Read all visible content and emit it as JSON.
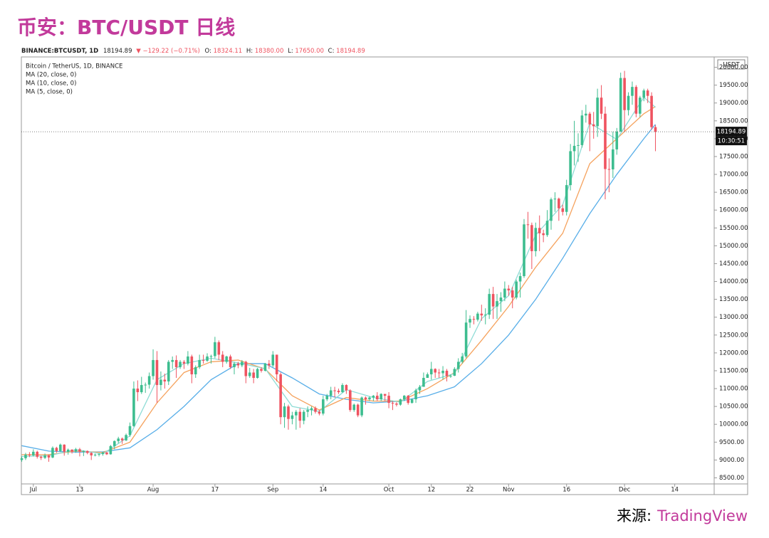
{
  "chart_data": {
    "type": "candlestick",
    "title": "币安：BTC/USDT 日线",
    "header": {
      "symbol": "BINANCE:BTCUSDT, 1D",
      "last": "18194.89",
      "change": "▼ −129.22 (−0.71%)",
      "ohlc": [
        {
          "label": "O:",
          "value": "18324.11"
        },
        {
          "label": "H:",
          "value": "18380.00"
        },
        {
          "label": "L:",
          "value": "17650.00"
        },
        {
          "label": "C:",
          "value": "18194.89"
        }
      ]
    },
    "legend_title": "Bitcoin / TetherUS, 1D, BINANCE",
    "unit": "USDT",
    "countdown": "10:30:51",
    "up_color": "#3dbd8f",
    "down_color": "#ef5360",
    "grid": false,
    "xlim": [
      -3.1,
      176.2
    ],
    "ylim": [
      8330,
      20290
    ],
    "xticks": [
      {
        "value": 0,
        "label": "Jul"
      },
      {
        "value": 12,
        "label": "13"
      },
      {
        "value": 31,
        "label": "Aug"
      },
      {
        "value": 47,
        "label": "17"
      },
      {
        "value": 62,
        "label": "Sep"
      },
      {
        "value": 75,
        "label": "14"
      },
      {
        "value": 92,
        "label": "Oct"
      },
      {
        "value": 103,
        "label": "12"
      },
      {
        "value": 113,
        "label": "22"
      },
      {
        "value": 123,
        "label": "Nov"
      },
      {
        "value": 138,
        "label": "16"
      },
      {
        "value": 153,
        "label": "Dec"
      },
      {
        "value": 166,
        "label": "14"
      }
    ],
    "yticks": [
      {
        "value": 8500,
        "label": "8500.00"
      },
      {
        "value": 9000,
        "label": "9000.00"
      },
      {
        "value": 9500,
        "label": "9500.00"
      },
      {
        "value": 10000,
        "label": "10000.00"
      },
      {
        "value": 10500,
        "label": "10500.00"
      },
      {
        "value": 11000,
        "label": "11000.00"
      },
      {
        "value": 11500,
        "label": "11500.00"
      },
      {
        "value": 12000,
        "label": "12000.00"
      },
      {
        "value": 12500,
        "label": "12500.00"
      },
      {
        "value": 13000,
        "label": "13000.00"
      },
      {
        "value": 13500,
        "label": "13500.00"
      },
      {
        "value": 14000,
        "label": "14000.00"
      },
      {
        "value": 14500,
        "label": "14500.00"
      },
      {
        "value": 15000,
        "label": "15000.00"
      },
      {
        "value": 15500,
        "label": "15500.00"
      },
      {
        "value": 16000,
        "label": "16000.00"
      },
      {
        "value": 16500,
        "label": "16500.00"
      },
      {
        "value": 17000,
        "label": "17000.00"
      },
      {
        "value": 17500,
        "label": "17500.00"
      },
      {
        "value": 18000,
        "label": "18000.00"
      },
      {
        "value": 18500,
        "label": "18500.00"
      },
      {
        "value": 19000,
        "label": "19000.00"
      },
      {
        "value": 19500,
        "label": "19500.00"
      },
      {
        "value": 20000,
        "label": "20000.00"
      }
    ],
    "x": [
      -3,
      -2,
      -1,
      0,
      1,
      2,
      3,
      4,
      5,
      6,
      7,
      8,
      9,
      10,
      11,
      12,
      13,
      14,
      15,
      16,
      17,
      18,
      19,
      20,
      21,
      22,
      23,
      24,
      25,
      26,
      27,
      28,
      29,
      30,
      31,
      32,
      33,
      34,
      35,
      36,
      37,
      38,
      39,
      40,
      41,
      42,
      43,
      44,
      45,
      46,
      47,
      48,
      49,
      50,
      51,
      52,
      53,
      54,
      55,
      56,
      57,
      58,
      59,
      60,
      61,
      62,
      63,
      64,
      65,
      66,
      67,
      68,
      69,
      70,
      71,
      72,
      73,
      74,
      75,
      76,
      77,
      78,
      79,
      80,
      81,
      82,
      83,
      84,
      85,
      86,
      87,
      88,
      89,
      90,
      91,
      92,
      93,
      94,
      95,
      96,
      97,
      98,
      99,
      100,
      101,
      102,
      103,
      104,
      105,
      106,
      107,
      108,
      109,
      110,
      111,
      112,
      113,
      114,
      115,
      116,
      117,
      118,
      119,
      120,
      121,
      122,
      123,
      124,
      125,
      126,
      127,
      128,
      129,
      130,
      131,
      132,
      133,
      134,
      135,
      136,
      137,
      138,
      139,
      140,
      141,
      142,
      143,
      144,
      145,
      146,
      147,
      148,
      149,
      150,
      151,
      152,
      153,
      154,
      155,
      156,
      157,
      158,
      159,
      160,
      161
    ],
    "open": [
      9000,
      9050,
      9150,
      9130,
      9230,
      9090,
      9060,
      9130,
      9070,
      9340,
      9250,
      9430,
      9230,
      9290,
      9240,
      9300,
      9240,
      9250,
      9200,
      9130,
      9150,
      9170,
      9210,
      9160,
      9390,
      9530,
      9600,
      9550,
      9700,
      9950,
      11000,
      10900,
      11100,
      11110,
      11350,
      11800,
      11100,
      11250,
      11200,
      11750,
      11800,
      11600,
      11750,
      11700,
      11900,
      11400,
      11600,
      11800,
      11780,
      11900,
      11910,
      12300,
      11950,
      11750,
      11900,
      11600,
      11700,
      11650,
      11750,
      11350,
      11450,
      11300,
      11550,
      11500,
      11700,
      11650,
      11950,
      11400,
      10200,
      10500,
      10150,
      10250,
      10350,
      10100,
      10350,
      10400,
      10450,
      10350,
      10300,
      10700,
      10800,
      10950,
      10940,
      10900,
      11100,
      10950,
      10400,
      10550,
      10250,
      10750,
      10700,
      10750,
      10800,
      10700,
      10850,
      10800,
      10600,
      10580,
      10550,
      10700,
      10800,
      10600,
      10700,
      10950,
      11050,
      11300,
      11400,
      11550,
      11450,
      11430,
      11500,
      11350,
      11360,
      11550,
      11750,
      11900,
      12850,
      12950,
      12930,
      13100,
      13050,
      13070,
      13650,
      13300,
      13450,
      13550,
      13800,
      13750,
      13550,
      14000,
      14150,
      15600,
      15580,
      14850,
      15500,
      15350,
      15300,
      15700,
      16300,
      16320,
      16050,
      15950,
      16700,
      17650,
      17800,
      17820,
      18650,
      18700,
      18400,
      18350,
      19150,
      18700,
      17150,
      17140,
      17700,
      18200,
      19700,
      18800,
      19200,
      19450,
      18700,
      19150,
      19350,
      19200,
      18324.11
    ],
    "high": [
      9100,
      9200,
      9220,
      9300,
      9260,
      9120,
      9180,
      9150,
      9380,
      9370,
      9460,
      9440,
      9320,
      9300,
      9340,
      9340,
      9270,
      9270,
      9220,
      9180,
      9190,
      9230,
      9230,
      9420,
      9550,
      9650,
      9630,
      9740,
      10050,
      11200,
      11230,
      11330,
      11170,
      11450,
      12100,
      12050,
      11480,
      11420,
      11800,
      11900,
      11930,
      11800,
      11800,
      12050,
      11950,
      11650,
      11950,
      11950,
      11990,
      11950,
      12450,
      12350,
      12050,
      11920,
      11950,
      11750,
      11750,
      11800,
      11780,
      11580,
      11550,
      11580,
      11600,
      11720,
      11800,
      12050,
      11950,
      11450,
      10600,
      10550,
      10350,
      10400,
      10450,
      10400,
      10500,
      10500,
      10500,
      10400,
      10800,
      10850,
      11050,
      11050,
      11000,
      11150,
      11120,
      10980,
      10580,
      10580,
      10780,
      10780,
      10780,
      10820,
      10900,
      10870,
      10850,
      10900,
      10650,
      10620,
      10720,
      10820,
      10820,
      10720,
      11000,
      11100,
      11450,
      11450,
      11750,
      11570,
      11550,
      11630,
      11550,
      11400,
      11600,
      11850,
      12000,
      13200,
      13050,
      13030,
      13150,
      13350,
      13250,
      13800,
      13850,
      13650,
      13700,
      14000,
      13900,
      13850,
      14050,
      14250,
      15750,
      15950,
      15650,
      15650,
      15850,
      15450,
      16000,
      16350,
      16500,
      16350,
      16150,
      16850,
      17850,
      18500,
      18150,
      18800,
      18950,
      18750,
      18750,
      19400,
      19500,
      18900,
      17450,
      18200,
      18300,
      19850,
      19900,
      19300,
      19600,
      19500,
      19200,
      19400,
      19400,
      19300,
      18380
    ],
    "low": [
      8950,
      9000,
      9080,
      9100,
      9040,
      9000,
      9030,
      8950,
      9050,
      9200,
      9220,
      9120,
      9150,
      9180,
      9200,
      9100,
      9110,
      9160,
      9000,
      9100,
      9100,
      9120,
      9140,
      9150,
      9300,
      9470,
      9450,
      9530,
      9650,
      9930,
      10650,
      10850,
      10880,
      11000,
      11250,
      10600,
      10950,
      11000,
      11100,
      11550,
      11300,
      11550,
      11550,
      11650,
      11150,
      11300,
      11550,
      11700,
      11750,
      11700,
      11850,
      11800,
      11600,
      11700,
      11550,
      11400,
      11570,
      11600,
      11150,
      11300,
      11150,
      11280,
      11450,
      11480,
      11550,
      11600,
      11200,
      10000,
      9900,
      9850,
      10000,
      9850,
      9900,
      10000,
      10200,
      10250,
      10300,
      10250,
      10250,
      10650,
      10700,
      10750,
      10850,
      10880,
      10850,
      10350,
      10350,
      10200,
      10200,
      10550,
      10650,
      10650,
      10650,
      10650,
      10650,
      10450,
      10400,
      10500,
      10520,
      10650,
      10550,
      10580,
      10600,
      10850,
      11050,
      11300,
      11250,
      11300,
      11300,
      11250,
      11200,
      11300,
      11350,
      11450,
      11700,
      11850,
      12700,
      12800,
      12880,
      12900,
      12800,
      12950,
      12950,
      12950,
      13150,
      13450,
      13600,
      13250,
      13500,
      13550,
      14100,
      15200,
      14350,
      14700,
      14850,
      15100,
      15250,
      15450,
      15950,
      15700,
      15850,
      15850,
      16550,
      17250,
      17350,
      17750,
      18450,
      17650,
      18000,
      18050,
      18550,
      16300,
      16500,
      16900,
      17550,
      18200,
      18200,
      18650,
      18950,
      18600,
      18600,
      19050,
      19000,
      18250,
      17650
    ],
    "close": [
      9050,
      9150,
      9130,
      9230,
      9090,
      9060,
      9130,
      9070,
      9340,
      9250,
      9430,
      9230,
      9290,
      9240,
      9300,
      9240,
      9250,
      9200,
      9130,
      9150,
      9170,
      9210,
      9160,
      9390,
      9530,
      9600,
      9550,
      9700,
      9950,
      11000,
      10900,
      11100,
      11110,
      11350,
      11800,
      11100,
      11250,
      11200,
      11750,
      11800,
      11600,
      11750,
      11700,
      11900,
      11400,
      11600,
      11800,
      11780,
      11900,
      11910,
      12300,
      11950,
      11750,
      11900,
      11600,
      11700,
      11650,
      11750,
      11350,
      11450,
      11300,
      11550,
      11500,
      11700,
      11650,
      11950,
      11400,
      10200,
      10500,
      10150,
      10250,
      10350,
      10100,
      10350,
      10400,
      10450,
      10350,
      10300,
      10700,
      10800,
      10950,
      10940,
      10900,
      11100,
      10950,
      10400,
      10550,
      10250,
      10750,
      10700,
      10750,
      10800,
      10700,
      10850,
      10800,
      10600,
      10580,
      10550,
      10700,
      10800,
      10600,
      10700,
      10950,
      11050,
      11300,
      11400,
      11550,
      11450,
      11430,
      11500,
      11350,
      11360,
      11550,
      11750,
      11900,
      12850,
      12950,
      12930,
      13100,
      13050,
      13070,
      13650,
      13300,
      13450,
      13550,
      13800,
      13750,
      13550,
      14000,
      14150,
      15600,
      15580,
      14850,
      15500,
      15350,
      15300,
      15700,
      16300,
      16320,
      16050,
      15950,
      16700,
      17650,
      17800,
      17820,
      18650,
      18700,
      18400,
      18350,
      19150,
      18700,
      17150,
      17140,
      17700,
      18200,
      19700,
      18800,
      19200,
      19450,
      18700,
      19150,
      19350,
      19200,
      18324.11,
      18194.89
    ],
    "ma": [
      {
        "name": "MA (20, close, 0)",
        "color": "#58aee8",
        "x": [
          -3,
          4,
          11,
          18,
          25,
          32,
          39,
          46,
          53,
          60,
          67,
          74,
          81,
          88,
          95,
          102,
          109,
          116,
          123,
          130,
          137,
          144,
          151,
          158,
          161
        ],
        "values": [
          9400,
          9250,
          9220,
          9230,
          9340,
          9850,
          10500,
          11250,
          11700,
          11700,
          11300,
          10850,
          10700,
          10600,
          10650,
          10800,
          11050,
          11700,
          12500,
          13500,
          14650,
          15900,
          17000,
          18000,
          18400
        ]
      },
      {
        "name": "MA (10, close, 0)",
        "color": "#f5a25d",
        "x": [
          -3,
          4,
          11,
          18,
          25,
          32,
          39,
          46,
          53,
          60,
          67,
          74,
          81,
          88,
          95,
          102,
          109,
          116,
          123,
          130,
          137,
          144,
          151,
          158,
          161
        ],
        "values": [
          9150,
          9150,
          9250,
          9210,
          9500,
          10600,
          11450,
          11750,
          11800,
          11550,
          10800,
          10400,
          10750,
          10650,
          10650,
          11000,
          11450,
          12350,
          13300,
          14400,
          15350,
          17300,
          18000,
          18700,
          18900
        ]
      },
      {
        "name": "MA (5, close, 0)",
        "color": "#8fdcd6",
        "x": [
          -3,
          4,
          11,
          18,
          25,
          32,
          39,
          46,
          53,
          60,
          67,
          74,
          81,
          88,
          95,
          102,
          109,
          116,
          123,
          130,
          137,
          144,
          151,
          158,
          161
        ],
        "values": [
          9100,
          9120,
          9290,
          9170,
          9680,
          11250,
          11700,
          11850,
          11720,
          11560,
          10500,
          10360,
          10970,
          10750,
          10620,
          11200,
          11420,
          12960,
          13600,
          15300,
          16150,
          18440,
          17980,
          19160,
          18880
        ]
      }
    ]
  },
  "source": {
    "label": "来源:",
    "name": "TradingView"
  }
}
